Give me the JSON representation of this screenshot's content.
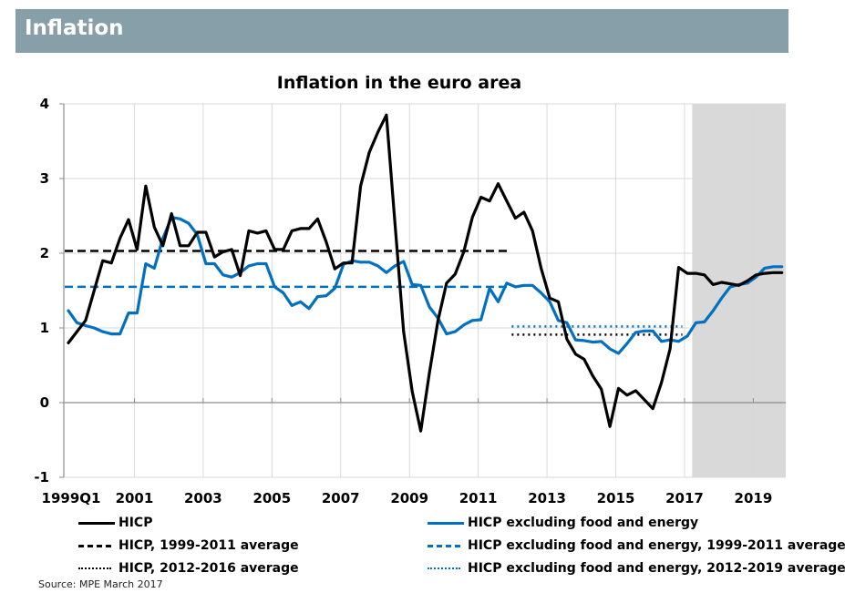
{
  "header": {
    "title": "Inflation"
  },
  "source": "Source: MPE March 2017",
  "colors": {
    "hicp": "#000000",
    "core": "#0070c0",
    "projection_shade": "#d9d9d9",
    "banner": "#879fa9"
  },
  "chart_data": {
    "type": "line",
    "title": "Inflation in the euro area",
    "xlabel": "",
    "ylabel": "",
    "ylim": [
      -1,
      4
    ],
    "yticks": [
      -1,
      0,
      1,
      2,
      3,
      4
    ],
    "x_start": "1999Q1",
    "x_end": "2019Q4",
    "frequency": "quarterly",
    "xtick_labels": [
      "1999Q1",
      "2001",
      "2003",
      "2005",
      "2007",
      "2009",
      "2011",
      "2013",
      "2015",
      "2017",
      "2019"
    ],
    "grid": true,
    "projection_shaded_from": "2017Q2",
    "series": [
      {
        "name": "HICP",
        "style": "solid",
        "color": "#000000",
        "values": [
          0.8,
          0.95,
          1.1,
          1.5,
          1.9,
          1.87,
          2.2,
          2.45,
          2.05,
          2.9,
          2.35,
          2.1,
          2.53,
          2.1,
          2.1,
          2.28,
          2.28,
          1.95,
          2.02,
          2.05,
          1.7,
          2.3,
          2.27,
          2.3,
          2.05,
          2.05,
          2.3,
          2.33,
          2.33,
          2.46,
          2.15,
          1.79,
          1.87,
          1.87,
          2.9,
          3.35,
          3.62,
          3.85,
          2.4,
          0.95,
          0.15,
          -0.38,
          0.4,
          1.1,
          1.6,
          1.72,
          2.02,
          2.48,
          2.75,
          2.7,
          2.93,
          2.7,
          2.47,
          2.55,
          2.3,
          1.8,
          1.4,
          1.35,
          0.85,
          0.65,
          0.58,
          0.36,
          0.18,
          -0.32,
          0.19,
          0.1,
          0.16,
          0.04,
          -0.08,
          0.27,
          0.72,
          1.81,
          1.73,
          1.73,
          1.71,
          1.58,
          1.61,
          1.59,
          1.57,
          1.63,
          1.71,
          1.73,
          1.74,
          1.74
        ]
      },
      {
        "name": "HICP excluding food and energy",
        "style": "solid",
        "color": "#0070c0",
        "values": [
          1.23,
          1.07,
          1.03,
          1.0,
          0.95,
          0.92,
          0.92,
          1.2,
          1.2,
          1.86,
          1.8,
          2.2,
          2.48,
          2.46,
          2.4,
          2.25,
          1.86,
          1.86,
          1.71,
          1.68,
          1.74,
          1.83,
          1.86,
          1.86,
          1.55,
          1.47,
          1.3,
          1.35,
          1.26,
          1.42,
          1.43,
          1.53,
          1.85,
          1.9,
          1.88,
          1.88,
          1.83,
          1.74,
          1.83,
          1.89,
          1.58,
          1.57,
          1.28,
          1.13,
          0.92,
          0.95,
          1.04,
          1.1,
          1.11,
          1.53,
          1.35,
          1.6,
          1.55,
          1.57,
          1.57,
          1.47,
          1.35,
          1.1,
          1.07,
          0.84,
          0.83,
          0.81,
          0.82,
          0.72,
          0.66,
          0.79,
          0.94,
          0.96,
          0.96,
          0.82,
          0.84,
          0.82,
          0.89,
          1.07,
          1.08,
          1.23,
          1.4,
          1.55,
          1.58,
          1.6,
          1.68,
          1.8,
          1.82,
          1.82
        ]
      },
      {
        "name": "HICP, 1999-2011 average",
        "style": "dashed",
        "color": "#000000",
        "value": 2.03,
        "from": "1999Q1",
        "to": "2011Q4"
      },
      {
        "name": "HICP excluding food and energy, 1999-2011 average",
        "style": "dashed",
        "color": "#0070c0",
        "value": 1.55,
        "from": "1999Q1",
        "to": "2011Q4"
      },
      {
        "name": "HICP, 2012-2016 average",
        "style": "dotted",
        "color": "#000000",
        "value": 0.91,
        "from": "2012Q1",
        "to": "2016Q4"
      },
      {
        "name": "HICP excluding food and energy, 2012-2019 average",
        "style": "dotted",
        "color": "#0070c0",
        "value": 1.02,
        "from": "2012Q1",
        "to": "2016Q4"
      }
    ],
    "legend": {
      "position": "bottom",
      "entries": [
        {
          "label": "HICP",
          "style": "solid",
          "color": "#000000"
        },
        {
          "label": "HICP excluding food and energy",
          "style": "solid",
          "color": "#0070c0"
        },
        {
          "label": "HICP, 1999-2011 average",
          "style": "dashed",
          "color": "#000000"
        },
        {
          "label": "HICP excluding food and energy, 1999-2011 average",
          "style": "dashed",
          "color": "#0070c0"
        },
        {
          "label": "HICP, 2012-2016 average",
          "style": "dotted",
          "color": "#000000"
        },
        {
          "label": "HICP excluding food and energy, 2012-2019 average",
          "style": "dotted",
          "color": "#0070c0"
        }
      ]
    }
  }
}
